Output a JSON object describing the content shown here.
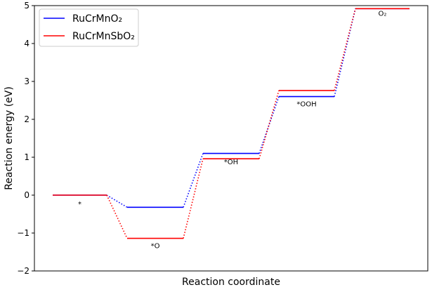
{
  "chart_data": {
    "type": "line",
    "title": "",
    "xlabel": "Reaction coordinate",
    "ylabel": "Reaction energy (eV)",
    "ylim": [
      -2,
      5
    ],
    "yticks": [
      -2,
      -1,
      0,
      1,
      2,
      3,
      4,
      5
    ],
    "xticks_visible": false,
    "grid": false,
    "legend_position": "top-left",
    "states": [
      "*",
      "*O",
      "*OH",
      "*OOH",
      "O₂"
    ],
    "series": [
      {
        "name": "RuCrMnO₂",
        "color": "#0000ff",
        "values": [
          0.0,
          -0.32,
          1.1,
          2.6,
          4.92
        ]
      },
      {
        "name": "RuCrMnSbO₂",
        "color": "#ff0000",
        "values": [
          0.0,
          -1.14,
          0.96,
          2.76,
          4.92
        ]
      }
    ]
  }
}
